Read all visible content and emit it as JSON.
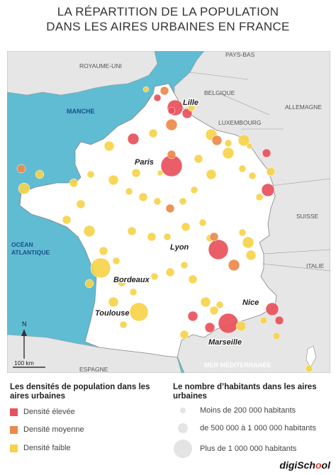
{
  "title": {
    "line1": "LA RÉPARTITION DE LA POPULATION",
    "line2": "DANS LES AIRES URBAINES EN FRANCE"
  },
  "colors": {
    "sea": "#5fbcd3",
    "land_france": "#ffffff",
    "land_neighbors": "#e6e6e6",
    "border": "#888888",
    "high": "#e8505b",
    "medium": "#ec8a4a",
    "low": "#f7d24a"
  },
  "map": {
    "countries": [
      "PAYS-BAS",
      "ROYAUME-UNI",
      "BELGIQUE",
      "ALLEMAGNE",
      "LUXEMBOURG",
      "SUISSE",
      "ITALIE",
      "ESPAGNE"
    ],
    "seas": {
      "manche": "MANCHE",
      "ocean_line1": "OCÉAN",
      "ocean_line2": "ATLANTIQUE",
      "med": "MER MÉDITERRANÉE"
    },
    "cities": [
      "Lille",
      "Paris",
      "Lyon",
      "Bordeaux",
      "Toulouse",
      "Nice",
      "Marseille"
    ],
    "north": "N",
    "scale": "100 km"
  },
  "legend": {
    "density_title": "Les densités de population dans les aires urbaines",
    "density_items": [
      {
        "label": "Densité élevée",
        "color": "#e8505b"
      },
      {
        "label": "Densité moyenne",
        "color": "#ec8a4a"
      },
      {
        "label": "Densité faible",
        "color": "#f7d24a"
      }
    ],
    "size_title": "Le nombre d’habitants dans les aires urbaines",
    "size_items": [
      {
        "label": "Moins de 200 000 habitants"
      },
      {
        "label": "de 500 000 à 1 000 000 habitants"
      },
      {
        "label": "Plus de 1 000 000 habitants"
      }
    ]
  },
  "brand": {
    "main": "digiSch",
    "accent": "o",
    "end": "ol"
  }
}
